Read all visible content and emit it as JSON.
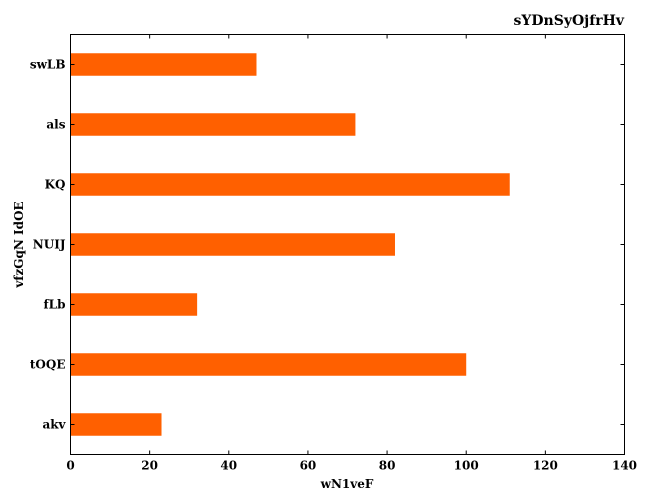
{
  "chart_data": {
    "type": "bar",
    "orientation": "horizontal",
    "title": "sYDnSyOjfrHv",
    "xlabel": "wN1veF",
    "ylabel": "vfzGqN IdOE",
    "categories": [
      "swLB",
      "als",
      "KQ",
      "NUIJ",
      "fLb",
      "tOQE",
      "akv"
    ],
    "values": [
      47,
      72,
      111,
      82,
      32,
      100,
      23
    ],
    "xlim": [
      0,
      140
    ],
    "xticks": [
      0,
      20,
      40,
      60,
      80,
      100,
      120,
      140
    ],
    "grid": false,
    "legend": "none",
    "bar_color": "#ff6000"
  }
}
